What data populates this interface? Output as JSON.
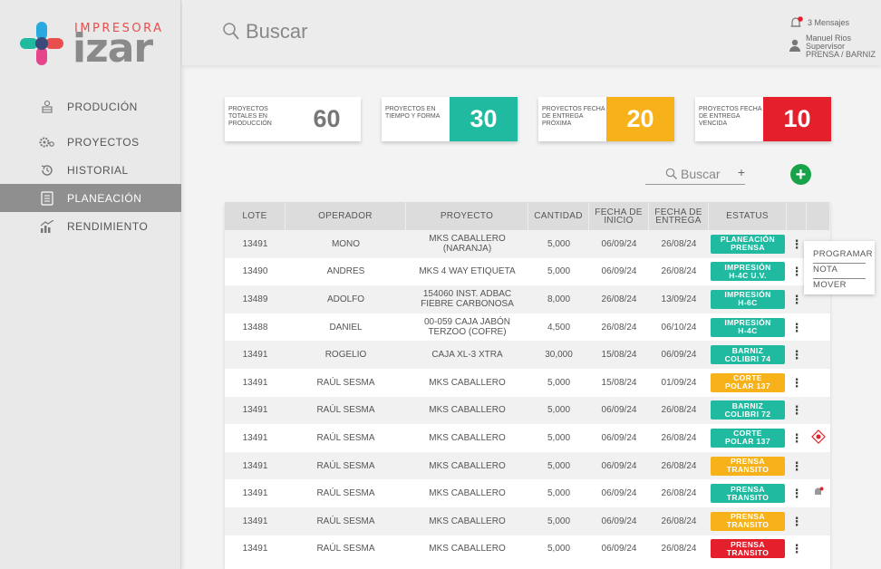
{
  "brand": {
    "small": "IMPRESORA",
    "big": "izar"
  },
  "colors": {
    "teal": "#1fbaa0",
    "yellow": "#f7b21a",
    "red": "#e3202b",
    "sidebar_active": "#8f8f8f",
    "add": "#18a34a"
  },
  "sidebar": {
    "items": [
      {
        "label": "PRODUCIÓN",
        "icon": "production-icon"
      },
      {
        "label": "PROYECTOS",
        "icon": "gears-icon"
      },
      {
        "label": "HISTORIAL",
        "icon": "history-icon"
      },
      {
        "label": "PLANEACIÓN",
        "icon": "planning-icon",
        "active": true
      },
      {
        "label": "RENDIMIENTO",
        "icon": "performance-chart-icon"
      }
    ]
  },
  "header": {
    "search_placeholder": "Buscar",
    "messages": "3 Mensajes",
    "user_name": "Manuel Rios",
    "user_role": "Supervisor",
    "user_area": "PRENSA / BARNIZ"
  },
  "kpis": [
    {
      "label": "PROYECTOS TOTALES EN PRODUCCIÓN",
      "value": "60",
      "color": "#ffffff",
      "text_color": "#777777"
    },
    {
      "label": "PROYECTOS EN TIEMPO Y FORMA",
      "value": "30",
      "color": "#1fbaa0",
      "text_color": "#ffffff"
    },
    {
      "label": "PROYECTOS FECHA DE ENTREGA PRÓXIMA",
      "value": "20",
      "color": "#f7b21a",
      "text_color": "#ffffff"
    },
    {
      "label": "PROYECTOS FECHA DE ENTREGA VENCIDA",
      "value": "10",
      "color": "#e3202b",
      "text_color": "#ffffff"
    }
  ],
  "filter": {
    "search_placeholder": "Buscar",
    "plus": "+",
    "add_label": "+"
  },
  "table": {
    "headers": [
      "LOTE",
      "OPERADOR",
      "PROYECTO",
      "CANTIDAD",
      "FECHA DE INICIO",
      "FECHA DE ENTREGA",
      "ESTATUS"
    ],
    "rows": [
      {
        "lote": "13491",
        "operador": "MONO",
        "proyecto": "MKS CABALLERO (NARANJA)",
        "cantidad": "5,000",
        "inicio": "06/09/24",
        "entrega": "26/08/24",
        "s1": "PLANEACIÓN",
        "s2": "PRENSA",
        "color": "#1fbaa0",
        "extra": ""
      },
      {
        "lote": "13490",
        "operador": "ANDRES",
        "proyecto": "MKS 4 WAY ETIQUETA",
        "cantidad": "5,000",
        "inicio": "06/09/24",
        "entrega": "26/08/24",
        "s1": "IMPRESIÓN",
        "s2": "H-4C U.V.",
        "color": "#1fbaa0",
        "extra": ""
      },
      {
        "lote": "13489",
        "operador": "ADOLFO",
        "proyecto": "154060 INST. ADBAC FIEBRE CARBONOSA",
        "cantidad": "8,000",
        "inicio": "26/08/24",
        "entrega": "13/09/24",
        "s1": "IMPRESIÓN",
        "s2": "H-6C",
        "color": "#1fbaa0",
        "extra": ""
      },
      {
        "lote": "13488",
        "operador": "DANIEL",
        "proyecto": "00-059 CAJA JABÓN TERZOO (COFRE)",
        "cantidad": "4,500",
        "inicio": "26/08/24",
        "entrega": "06/10/24",
        "s1": "IMPRESIÓN",
        "s2": "H-4C",
        "color": "#1fbaa0",
        "extra": ""
      },
      {
        "lote": "13491",
        "operador": "ROGELIO",
        "proyecto": "CAJA XL-3 XTRA",
        "cantidad": "30,000",
        "inicio": "15/08/24",
        "entrega": "06/09/24",
        "s1": "BARNIZ",
        "s2": "COLIBRI 74",
        "color": "#1fbaa0",
        "extra": ""
      },
      {
        "lote": "13491",
        "operador": "RAÚL SESMA",
        "proyecto": "MKS CABALLERO",
        "cantidad": "5,000",
        "inicio": "15/08/24",
        "entrega": "01/09/24",
        "s1": "CORTE",
        "s2": "POLAR 137",
        "color": "#f7b21a",
        "extra": ""
      },
      {
        "lote": "13491",
        "operador": "RAÚL SESMA",
        "proyecto": "MKS CABALLERO",
        "cantidad": "5,000",
        "inicio": "06/09/24",
        "entrega": "26/08/24",
        "s1": "BARNIZ",
        "s2": "COLIBRI 72",
        "color": "#1fbaa0",
        "extra": ""
      },
      {
        "lote": "13491",
        "operador": "RAÚL SESMA",
        "proyecto": "MKS CABALLERO",
        "cantidad": "5,000",
        "inicio": "06/09/24",
        "entrega": "26/08/24",
        "s1": "CORTE",
        "s2": "POLAR 137",
        "color": "#1fbaa0",
        "extra": "warning"
      },
      {
        "lote": "13491",
        "operador": "RAÚL SESMA",
        "proyecto": "MKS CABALLERO",
        "cantidad": "5,000",
        "inicio": "06/09/24",
        "entrega": "26/08/24",
        "s1": "PRENSA",
        "s2": "TRANSITO",
        "color": "#f7b21a",
        "extra": ""
      },
      {
        "lote": "13491",
        "operador": "RAÚL SESMA",
        "proyecto": "MKS CABALLERO",
        "cantidad": "5,000",
        "inicio": "06/09/24",
        "entrega": "26/08/24",
        "s1": "PRENSA",
        "s2": "TRANSITO",
        "color": "#1fbaa0",
        "extra": "bell"
      },
      {
        "lote": "13491",
        "operador": "RAÚL SESMA",
        "proyecto": "MKS CABALLERO",
        "cantidad": "5,000",
        "inicio": "06/09/24",
        "entrega": "26/08/24",
        "s1": "PRENSA",
        "s2": "TRANSITO",
        "color": "#f7b21a",
        "extra": ""
      },
      {
        "lote": "13491",
        "operador": "RAÚL SESMA",
        "proyecto": "MKS CABALLERO",
        "cantidad": "5,000",
        "inicio": "06/09/24",
        "entrega": "26/08/24",
        "s1": "PRENSA",
        "s2": "TRANSITO",
        "color": "#e3202b",
        "extra": ""
      }
    ]
  },
  "context_menu": {
    "items": [
      "PROGRAMAR",
      "NOTA",
      "MOVER"
    ]
  }
}
